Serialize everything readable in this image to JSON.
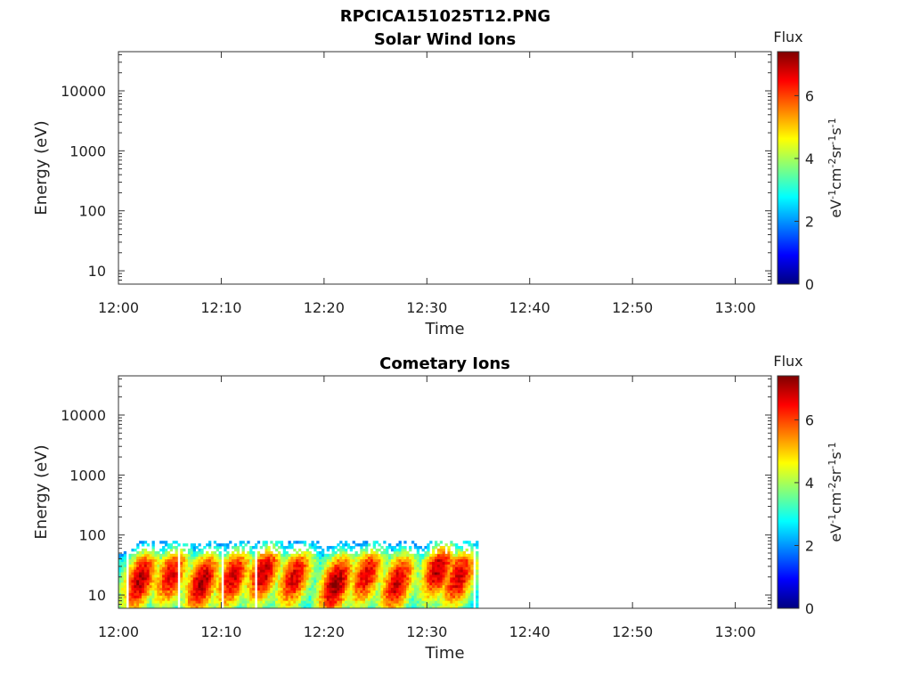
{
  "figure_title": "RPCICA151025T12.PNG",
  "chart_data": [
    {
      "type": "heatmap",
      "title": "Solar Wind Ions",
      "xlabel": "Time",
      "ylabel": "Energy (eV)",
      "x_ticks": [
        "12:00",
        "12:10",
        "12:20",
        "12:30",
        "12:40",
        "12:50",
        "13:00"
      ],
      "x_range_minutes": [
        0,
        63.5
      ],
      "y_scale": "log",
      "y_ticks": [
        "10",
        "100",
        "1000",
        "10000"
      ],
      "y_range": [
        6,
        45000
      ],
      "colorbar": {
        "title": "Flux",
        "label": "eV-1cm-2sr-1s-1",
        "ticks": [
          "0",
          "2",
          "4",
          "6"
        ],
        "range": [
          0,
          7.4
        ],
        "colormap": "jet"
      },
      "data": []
    },
    {
      "type": "heatmap",
      "title": "Cometary Ions",
      "xlabel": "Time",
      "ylabel": "Energy (eV)",
      "x_ticks": [
        "12:00",
        "12:10",
        "12:20",
        "12:30",
        "12:40",
        "12:50",
        "13:00"
      ],
      "x_range_minutes": [
        0,
        63.5
      ],
      "y_scale": "log",
      "y_ticks": [
        "10",
        "100",
        "1000",
        "10000"
      ],
      "y_range": [
        6,
        45000
      ],
      "colorbar": {
        "title": "Flux",
        "label": "eV-1cm-2sr-1s-1",
        "ticks": [
          "0",
          "2",
          "4",
          "6"
        ],
        "range": [
          0,
          7.4
        ],
        "colormap": "jet"
      },
      "data_extent": {
        "time_end": "12:35",
        "energy_range_eV": [
          6,
          80
        ]
      },
      "flux_peaks": [
        {
          "time": "12:02",
          "energy_eV": 18,
          "flux": 6.5
        },
        {
          "time": "12:05",
          "energy_eV": 22,
          "flux": 6.0
        },
        {
          "time": "12:08",
          "energy_eV": 16,
          "flux": 6.6
        },
        {
          "time": "12:11",
          "energy_eV": 20,
          "flux": 6.2
        },
        {
          "time": "12:14",
          "energy_eV": 24,
          "flux": 6.4
        },
        {
          "time": "12:17",
          "energy_eV": 20,
          "flux": 6.1
        },
        {
          "time": "12:21",
          "energy_eV": 15,
          "flux": 6.8
        },
        {
          "time": "12:24",
          "energy_eV": 22,
          "flux": 6.0
        },
        {
          "time": "12:27",
          "energy_eV": 16,
          "flux": 6.3
        },
        {
          "time": "12:31",
          "energy_eV": 28,
          "flux": 6.5
        },
        {
          "time": "12:33",
          "energy_eV": 20,
          "flux": 6.2
        }
      ]
    }
  ]
}
